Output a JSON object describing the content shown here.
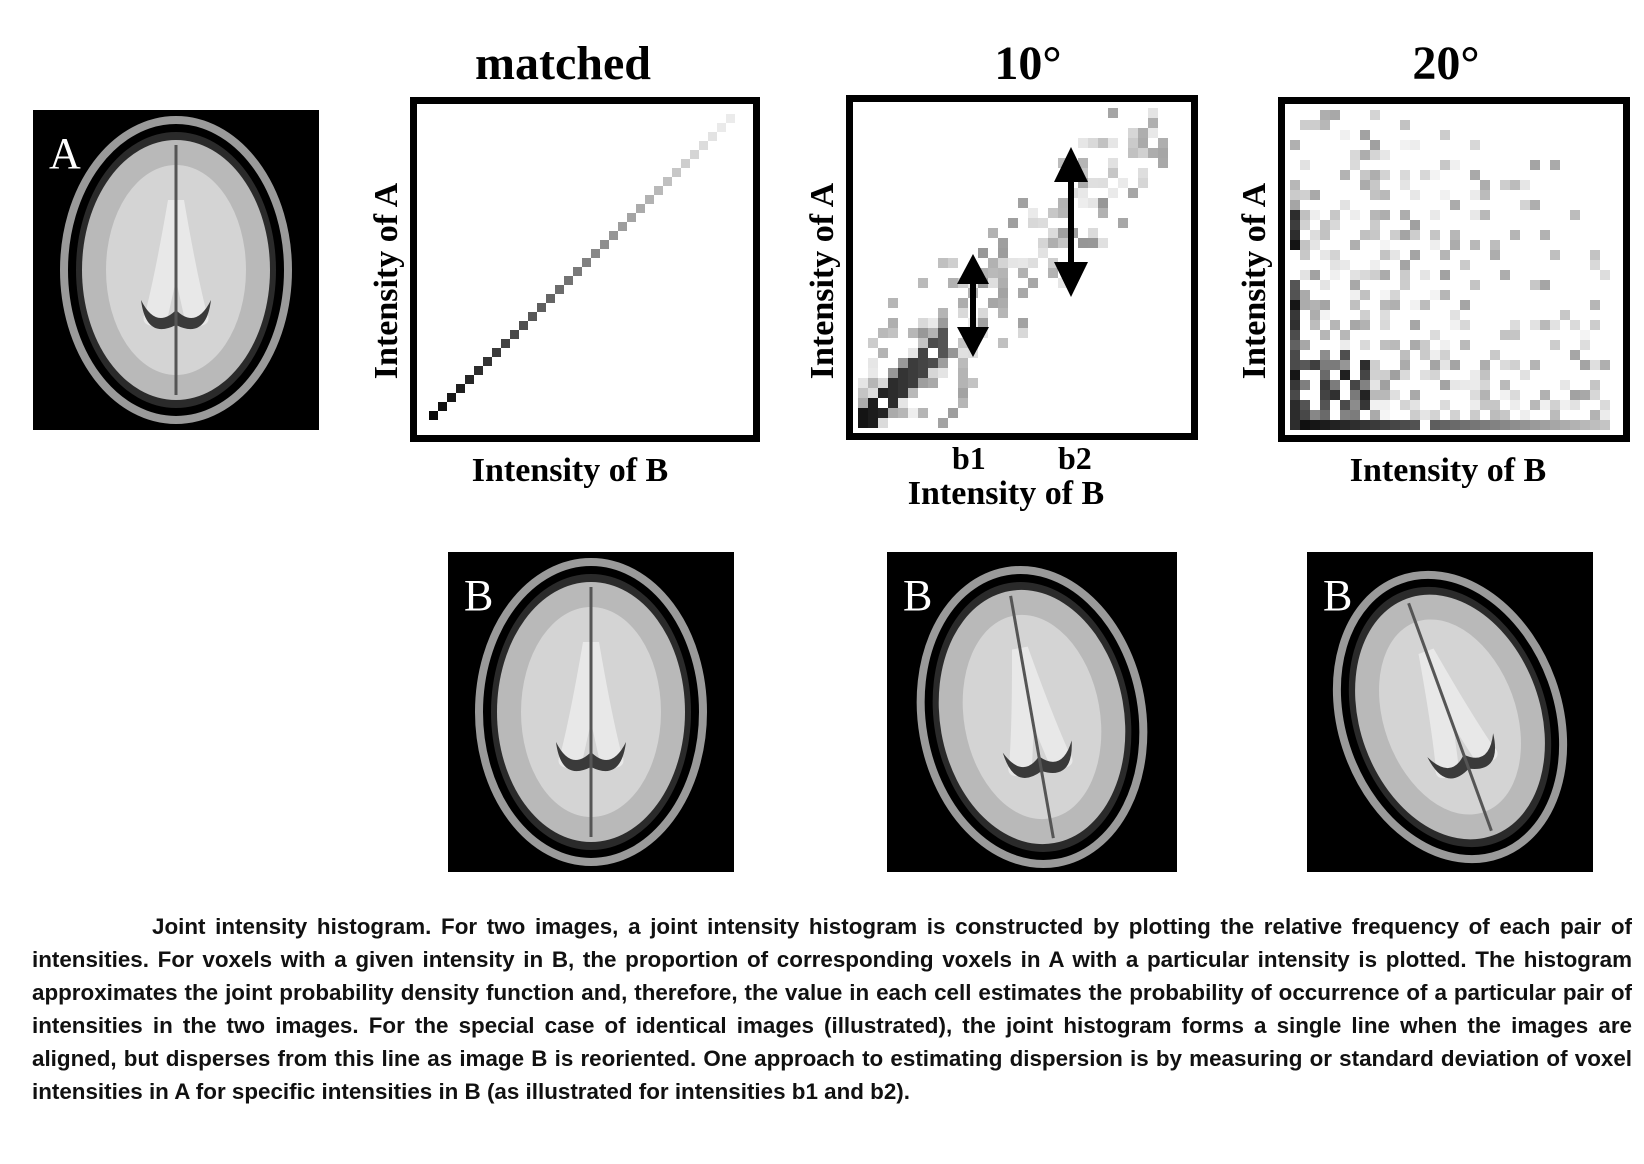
{
  "panels": [
    {
      "title": "matched",
      "xlabel": "Intensity of B",
      "ylabel": "Intensity of A"
    },
    {
      "title": "10°",
      "xlabel": "Intensity of B",
      "ylabel": "Intensity of A",
      "ticks": [
        "b1",
        "b2"
      ]
    },
    {
      "title": "20°",
      "xlabel": "Intensity of B",
      "ylabel": "Intensity of A"
    }
  ],
  "images": {
    "a_label": "A",
    "b_label": "B"
  },
  "caption": "Joint intensity histogram. For two images, a joint intensity histogram is constructed by plotting the relative frequency of each pair of intensities. For voxels with a given intensity in B, the proportion of corresponding voxels in A with a particular intensity is plotted. The histogram approximates the joint probability density function and, therefore, the value in each cell estimates the probability of occurrence of a particular pair of intensities in the two images. For the special case of identical images (illustrated), the joint histogram forms a single line when the images are aligned, but disperses from this line as image B is reoriented. One approach to estimating dispersion is by measuring or standard deviation of voxel intensities in A for specific intensities in B (as illustrated for intensities b1 and b2).",
  "colors": {
    "ink": "#000000",
    "brain_bg": "#000000"
  },
  "chart_data": [
    {
      "type": "heatmap",
      "title": "matched",
      "xlabel": "Intensity of B",
      "ylabel": "Intensity of A",
      "pattern": "single diagonal line"
    },
    {
      "type": "heatmap",
      "title": "10°",
      "xlabel": "Intensity of B",
      "ylabel": "Intensity of A",
      "pattern": "dispersed around diagonal",
      "annotations": [
        "b1",
        "b2"
      ]
    },
    {
      "type": "heatmap",
      "title": "20°",
      "xlabel": "Intensity of B",
      "ylabel": "Intensity of A",
      "pattern": "widely dispersed"
    }
  ]
}
